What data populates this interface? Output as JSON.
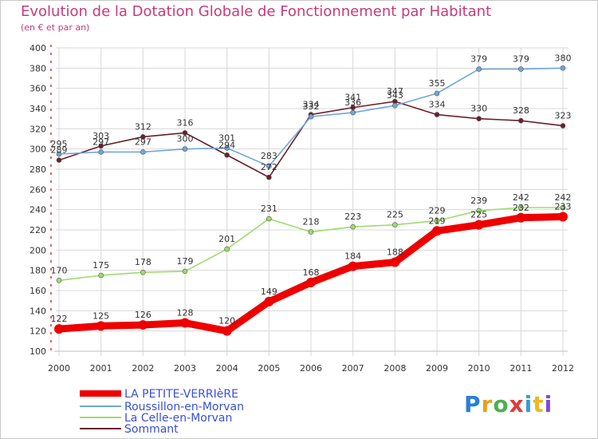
{
  "title": "Evolution de la Dotation Globale de Fonctionnement par Habitant",
  "subtitle": "(en € et par an)",
  "logo": {
    "text": "Proxiti",
    "colors": [
      "#2a7fd4",
      "#e8a020",
      "#4caf50",
      "#e03a3a",
      "#3a9ad9",
      "#f0b81c",
      "#7b4bd6"
    ]
  },
  "chart_data": {
    "type": "line",
    "title": "Evolution de la Dotation Globale de Fonctionnement par Habitant",
    "subtitle": "(en € et par an)",
    "categories": [
      "2000",
      "2001",
      "2002",
      "2003",
      "2004",
      "2005",
      "2006",
      "2007",
      "2008",
      "2009",
      "2010",
      "2011",
      "2012"
    ],
    "ylim": [
      100,
      400
    ],
    "yticks": [
      100,
      120,
      140,
      160,
      180,
      200,
      220,
      240,
      260,
      280,
      300,
      320,
      340,
      360,
      380,
      400
    ],
    "grid": true,
    "legend_position": "bottom-left",
    "series": [
      {
        "name": "Sommant",
        "color": "#6b1f2a",
        "values": [
          289,
          303,
          312,
          316,
          294,
          272,
          334,
          341,
          347,
          334,
          330,
          328,
          323
        ],
        "labels": [
          "289",
          "303",
          "312",
          "316",
          "294",
          "272",
          "334",
          "341",
          "347",
          "334",
          "330",
          "328",
          "323"
        ]
      },
      {
        "name": "Roussillon-en-Morvan",
        "color": "#6fa7d8",
        "values": [
          295,
          297,
          297,
          300,
          301,
          283,
          332,
          336,
          343,
          355,
          379,
          379,
          380
        ],
        "labels": [
          "295",
          "297",
          "297",
          "300",
          "301",
          "283",
          "332",
          "336",
          "343",
          "355",
          "379",
          "379",
          "380"
        ]
      },
      {
        "name": "La Celle-en-Morvan",
        "color": "#9fdc6c",
        "values": [
          170,
          175,
          178,
          179,
          201,
          231,
          218,
          223,
          225,
          229,
          239,
          242,
          242
        ],
        "labels": [
          "170",
          "175",
          "178",
          "179",
          "201",
          "231",
          "218",
          "223",
          "225",
          "229",
          "239",
          "242",
          "242"
        ]
      },
      {
        "name": "LA PETITE-VERRIèRE",
        "color": "#ee0000",
        "values": [
          122,
          125,
          126,
          128,
          120,
          149,
          168,
          184,
          188,
          219,
          225,
          232,
          233
        ],
        "labels": [
          "122",
          "125",
          "126",
          "128",
          "120",
          "149",
          "168",
          "184",
          "188",
          "219",
          "225",
          "232",
          "233"
        ]
      }
    ],
    "legend": [
      {
        "name": "LA PETITE-VERRIèRE",
        "color": "#ee0000",
        "thick": true
      },
      {
        "name": "Roussillon-en-Morvan",
        "color": "#6fa7d8",
        "thick": false
      },
      {
        "name": "La Celle-en-Morvan",
        "color": "#9fdc6c",
        "thick": false
      },
      {
        "name": "Sommant",
        "color": "#6b1f2a",
        "thick": false
      }
    ]
  }
}
